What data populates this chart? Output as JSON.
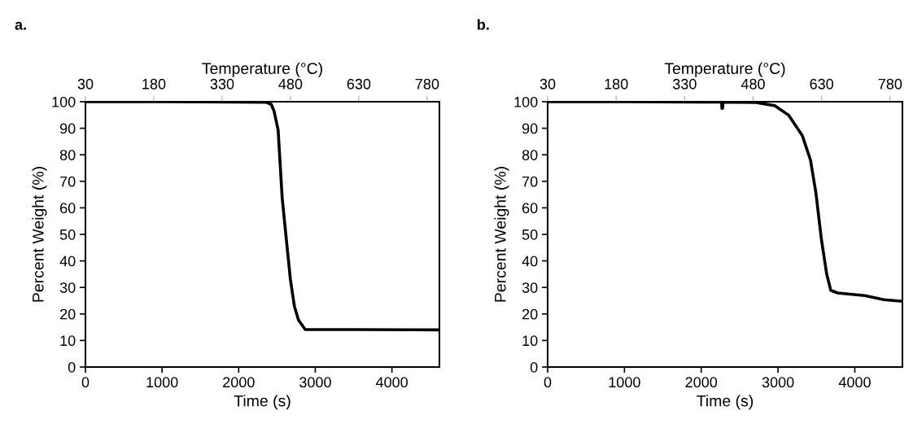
{
  "chart_data": [
    {
      "type": "line",
      "title": "a.",
      "xlabel": "Time (s)",
      "ylabel": "Percent Weight (%)",
      "x2label": "Temperature (°C)",
      "x": [
        0,
        1000,
        2000,
        2356,
        2426,
        2462,
        2515,
        2568,
        2621,
        2675,
        2728,
        2781,
        2869,
        3500,
        4620
      ],
      "series": [
        {
          "color": "#000000",
          "values": [
            100,
            100,
            99.9,
            99.8,
            99,
            96.4,
            89.3,
            63.7,
            48.4,
            33,
            22.8,
            17.7,
            14.1,
            14.1,
            14
          ]
        }
      ],
      "xlim": [
        0,
        4620
      ],
      "xticks": [
        0,
        1000,
        2000,
        3000,
        4000
      ],
      "ylim": [
        0,
        100
      ],
      "yticks": [
        0,
        10,
        20,
        30,
        40,
        50,
        60,
        70,
        80,
        90,
        100
      ],
      "x2lim": [
        30,
        807
      ],
      "x2ticks": [
        30,
        180,
        330,
        480,
        630,
        780
      ],
      "grid": false,
      "marker": "none",
      "line_style": "solid"
    },
    {
      "type": "line",
      "title": "b.",
      "xlabel": "Time (s)",
      "ylabel": "Percent Weight (%)",
      "x2label": "Temperature (°C)",
      "x": [
        0,
        1000,
        2000,
        2265,
        2270,
        2278,
        2285,
        2717,
        2960,
        3140,
        3317,
        3423,
        3493,
        3564,
        3634,
        3687,
        3777,
        4130,
        4378,
        4603
      ],
      "series": [
        {
          "color": "#000000",
          "values": [
            100,
            100,
            99.9,
            99.9,
            97.5,
            97.5,
            99.9,
            99.7,
            98.5,
            94.9,
            87.2,
            78,
            65.7,
            48.4,
            35,
            28.9,
            27.9,
            26.9,
            25.4,
            24.8
          ]
        }
      ],
      "xlim": [
        0,
        4620
      ],
      "xticks": [
        0,
        1000,
        2000,
        3000,
        4000
      ],
      "ylim": [
        0,
        100
      ],
      "yticks": [
        0,
        10,
        20,
        30,
        40,
        50,
        60,
        70,
        80,
        90,
        100
      ],
      "x2lim": [
        30,
        807
      ],
      "x2ticks": [
        30,
        180,
        330,
        480,
        630,
        780
      ],
      "grid": false,
      "marker": "none",
      "line_style": "solid"
    }
  ]
}
